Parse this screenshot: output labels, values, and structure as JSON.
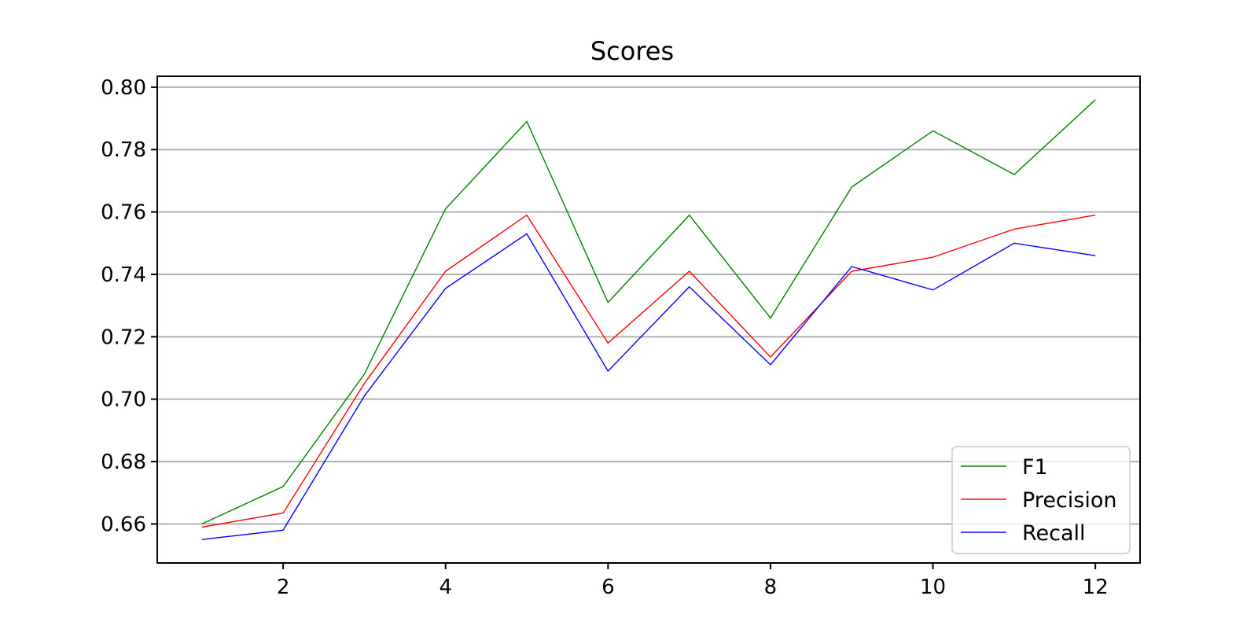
{
  "chart_data": {
    "type": "line",
    "title": "Scores",
    "xlabel": "",
    "ylabel": "",
    "x": [
      1,
      2,
      3,
      4,
      5,
      6,
      7,
      8,
      9,
      10,
      11,
      12
    ],
    "xlim": [
      0.45,
      12.55
    ],
    "ylim": [
      0.6475,
      0.8035
    ],
    "xticks": [
      2,
      4,
      6,
      8,
      10,
      12
    ],
    "xtick_labels": [
      "2",
      "4",
      "6",
      "8",
      "10",
      "12"
    ],
    "yticks": [
      0.66,
      0.68,
      0.7,
      0.72,
      0.74,
      0.76,
      0.78,
      0.8
    ],
    "ytick_labels": [
      "0.66",
      "0.68",
      "0.70",
      "0.72",
      "0.74",
      "0.76",
      "0.78",
      "0.80"
    ],
    "grid": "horizontal",
    "legend_position": "lower-right",
    "series": [
      {
        "name": "F1",
        "color": "#008000",
        "values": [
          0.66,
          0.672,
          0.708,
          0.761,
          0.789,
          0.731,
          0.759,
          0.726,
          0.768,
          0.786,
          0.772,
          0.796
        ]
      },
      {
        "name": "Precision",
        "color": "#ff0000",
        "values": [
          0.659,
          0.6635,
          0.705,
          0.741,
          0.759,
          0.718,
          0.741,
          0.7135,
          0.741,
          0.7455,
          0.7545,
          0.759
        ]
      },
      {
        "name": "Recall",
        "color": "#0000ff",
        "values": [
          0.655,
          0.658,
          0.701,
          0.7355,
          0.753,
          0.709,
          0.736,
          0.711,
          0.7425,
          0.735,
          0.75,
          0.746
        ]
      }
    ]
  }
}
